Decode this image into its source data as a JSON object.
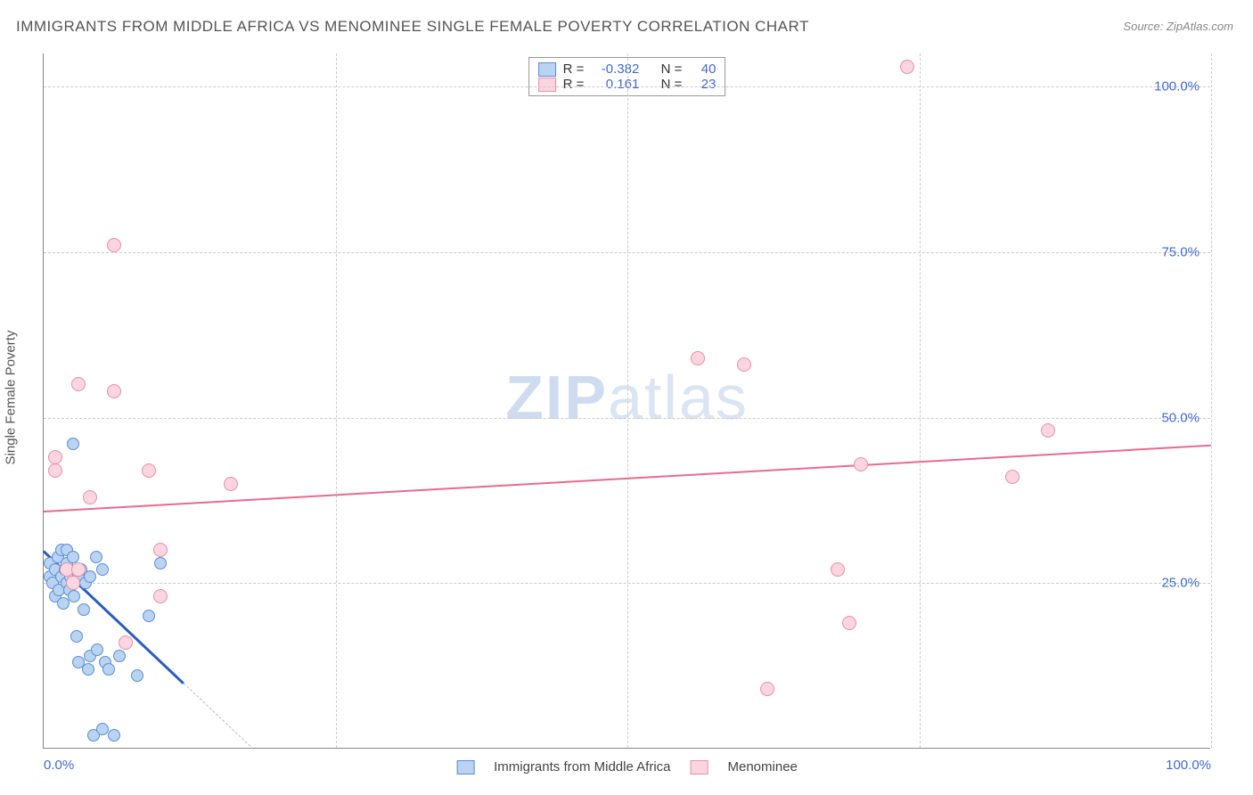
{
  "title": "IMMIGRANTS FROM MIDDLE AFRICA VS MENOMINEE SINGLE FEMALE POVERTY CORRELATION CHART",
  "source_label": "Source:",
  "source_name": "ZipAtlas.com",
  "watermark_zip": "ZIP",
  "watermark_atlas": "atlas",
  "ylabel": "Single Female Poverty",
  "chart": {
    "type": "scatter",
    "xlim": [
      0,
      100
    ],
    "ylim": [
      0,
      105
    ],
    "xticks": [
      0,
      50,
      100
    ],
    "xticklabels": [
      "0.0%",
      "",
      "100.0%"
    ],
    "xtick_minor": [
      25,
      75
    ],
    "yticks": [
      25,
      50,
      75,
      100
    ],
    "yticklabels": [
      "25.0%",
      "50.0%",
      "75.0%",
      "100.0%"
    ],
    "background": "#ffffff",
    "grid_color": "#cccccc",
    "axis_color": "#888888",
    "tick_label_color": "#4169d1",
    "tick_fontsize": 15
  },
  "series": [
    {
      "name": "Immigrants from Middle Africa",
      "marker_fill": "#b9d3f0",
      "marker_stroke": "#5a8fd6",
      "marker_size": 14,
      "trend_color": "#2a5bbf",
      "trend_width": 2.5,
      "trend": {
        "x1": 0,
        "y1": 30,
        "x2": 12,
        "y2": 10
      },
      "trend_dash": {
        "x1": 12,
        "y1": 10,
        "x2": 18,
        "y2": 0
      },
      "R": "-0.382",
      "N": "40",
      "points": [
        [
          0.5,
          26
        ],
        [
          0.5,
          28
        ],
        [
          0.8,
          25
        ],
        [
          1,
          27
        ],
        [
          1,
          23
        ],
        [
          1.2,
          29
        ],
        [
          1.3,
          24
        ],
        [
          1.5,
          30
        ],
        [
          1.5,
          26
        ],
        [
          1.7,
          22
        ],
        [
          1.8,
          27
        ],
        [
          2,
          28
        ],
        [
          2,
          25
        ],
        [
          2,
          30
        ],
        [
          2.2,
          24
        ],
        [
          2.3,
          26
        ],
        [
          2.5,
          29
        ],
        [
          2.6,
          23
        ],
        [
          2.8,
          17
        ],
        [
          3,
          13
        ],
        [
          3,
          26
        ],
        [
          3.2,
          27
        ],
        [
          3.4,
          21
        ],
        [
          3.6,
          25
        ],
        [
          3.8,
          12
        ],
        [
          4,
          14
        ],
        [
          4,
          26
        ],
        [
          4.3,
          2
        ],
        [
          4.5,
          29
        ],
        [
          4.6,
          15
        ],
        [
          5,
          3
        ],
        [
          5,
          27
        ],
        [
          5.3,
          13
        ],
        [
          5.6,
          12
        ],
        [
          6,
          2
        ],
        [
          6.5,
          14
        ],
        [
          8,
          11
        ],
        [
          9,
          20
        ],
        [
          10,
          28
        ],
        [
          2.5,
          46
        ]
      ]
    },
    {
      "name": "Menominee",
      "marker_fill": "#fbd5df",
      "marker_stroke": "#e98fa6",
      "marker_size": 16,
      "trend_color": "#e86b8f",
      "trend_width": 2,
      "trend": {
        "x1": 0,
        "y1": 36,
        "x2": 100,
        "y2": 46
      },
      "R": "0.161",
      "N": "23",
      "points": [
        [
          1,
          42
        ],
        [
          1,
          44
        ],
        [
          2,
          27
        ],
        [
          2.5,
          25
        ],
        [
          3,
          55
        ],
        [
          4,
          38
        ],
        [
          6,
          54
        ],
        [
          7,
          16
        ],
        [
          9,
          42
        ],
        [
          10,
          30
        ],
        [
          10,
          23
        ],
        [
          16,
          40
        ],
        [
          6,
          76
        ],
        [
          60,
          58
        ],
        [
          62,
          9
        ],
        [
          68,
          27
        ],
        [
          69,
          19
        ],
        [
          70,
          43
        ],
        [
          74,
          103
        ],
        [
          83,
          41
        ],
        [
          86,
          48
        ],
        [
          56,
          59
        ],
        [
          3,
          27
        ]
      ]
    }
  ],
  "stats": {
    "R_label": "R =",
    "N_label": "N ="
  },
  "legend": {
    "items": [
      "Immigrants from Middle Africa",
      "Menominee"
    ]
  }
}
